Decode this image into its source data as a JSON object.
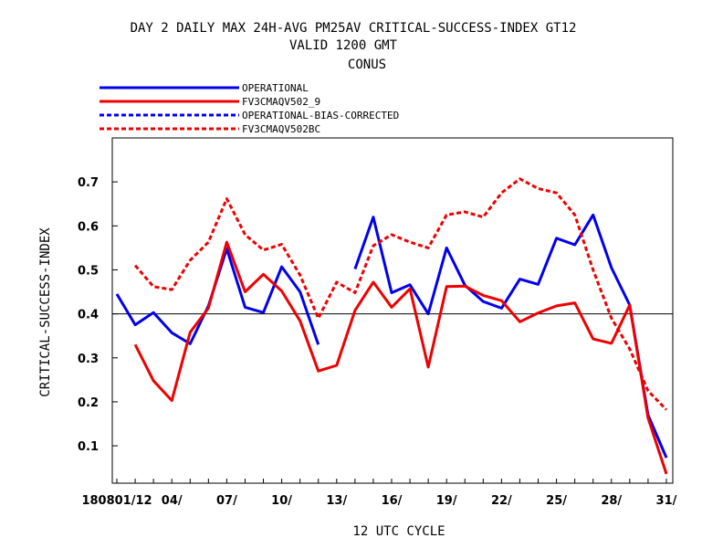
{
  "chart_data": {
    "type": "line",
    "title_lines": [
      "DAY 2 DAILY MAX   24H-AVG PM25AV CRITICAL-SUCCESS-INDEX GT12",
      "VALID 1200 GMT",
      "CONUS"
    ],
    "xlabel": "12 UTC CYCLE",
    "ylabel": "CRITICAL-SUCCESS-INDEX",
    "x_tick_labels": [
      {
        "day": 1,
        "label": "180801/12"
      },
      {
        "day": 4,
        "label": "04/"
      },
      {
        "day": 7,
        "label": "07/"
      },
      {
        "day": 10,
        "label": "10/"
      },
      {
        "day": 13,
        "label": "13/"
      },
      {
        "day": 16,
        "label": "16/"
      },
      {
        "day": 19,
        "label": "19/"
      },
      {
        "day": 22,
        "label": "22/"
      },
      {
        "day": 25,
        "label": "25/"
      },
      {
        "day": 28,
        "label": "28/"
      },
      {
        "day": 31,
        "label": "31/"
      }
    ],
    "y_ticks": [
      "0.1",
      "0.2",
      "0.3",
      "0.4",
      "0.5",
      "0.6",
      "0.7"
    ],
    "xlim": [
      0.75,
      31.35
    ],
    "ylim": [
      0.015,
      0.8
    ],
    "reference_line": 0.4,
    "legend_position": "top-left, above plot",
    "series": [
      {
        "name": "OPERATIONAL",
        "color": "#0000ee",
        "dash": "solid",
        "points": [
          [
            1,
            0.445
          ],
          [
            2,
            0.375
          ],
          [
            3,
            0.403
          ],
          [
            4,
            0.357
          ],
          [
            5,
            0.332
          ],
          [
            6,
            0.418
          ],
          [
            7,
            0.548
          ],
          [
            8,
            0.415
          ],
          [
            9,
            0.403
          ],
          [
            10,
            0.507
          ],
          [
            11,
            0.45
          ],
          [
            12,
            0.33
          ],
          [
            14,
            0.502
          ],
          [
            15,
            0.62
          ],
          [
            16,
            0.448
          ],
          [
            17,
            0.466
          ],
          [
            18,
            0.4
          ],
          [
            19,
            0.55
          ],
          [
            20,
            0.465
          ],
          [
            21,
            0.428
          ],
          [
            22,
            0.413
          ],
          [
            23,
            0.479
          ],
          [
            24,
            0.467
          ],
          [
            25,
            0.572
          ],
          [
            26,
            0.557
          ],
          [
            27,
            0.625
          ],
          [
            28,
            0.505
          ],
          [
            29,
            0.42
          ],
          [
            30,
            0.17
          ],
          [
            31,
            0.073
          ]
        ]
      },
      {
        "name": "FV3CMAQV502_9",
        "color": "#ee0000",
        "dash": "solid",
        "points": [
          [
            2,
            0.33
          ],
          [
            3,
            0.248
          ],
          [
            4,
            0.203
          ],
          [
            5,
            0.358
          ],
          [
            6,
            0.413
          ],
          [
            7,
            0.563
          ],
          [
            8,
            0.45
          ],
          [
            9,
            0.49
          ],
          [
            10,
            0.452
          ],
          [
            11,
            0.384
          ],
          [
            12,
            0.27
          ],
          [
            13,
            0.283
          ],
          [
            14,
            0.408
          ],
          [
            15,
            0.472
          ],
          [
            16,
            0.415
          ],
          [
            17,
            0.457
          ],
          [
            18,
            0.279
          ],
          [
            19,
            0.462
          ],
          [
            20,
            0.463
          ],
          [
            21,
            0.442
          ],
          [
            22,
            0.43
          ],
          [
            23,
            0.382
          ],
          [
            24,
            0.402
          ],
          [
            25,
            0.418
          ],
          [
            26,
            0.425
          ],
          [
            27,
            0.343
          ],
          [
            28,
            0.333
          ],
          [
            29,
            0.42
          ],
          [
            30,
            0.163
          ],
          [
            31,
            0.036
          ]
        ]
      },
      {
        "name": "OPERATIONAL-BIAS-CORRECTED",
        "color": "#0000ee",
        "dash": "dashed",
        "points": []
      },
      {
        "name": "FV3CMAQV502BC",
        "color": "#ee0000",
        "dash": "dashed",
        "points": [
          [
            2,
            0.51
          ],
          [
            3,
            0.462
          ],
          [
            4,
            0.455
          ],
          [
            5,
            0.522
          ],
          [
            6,
            0.563
          ],
          [
            7,
            0.662
          ],
          [
            8,
            0.58
          ],
          [
            9,
            0.545
          ],
          [
            10,
            0.558
          ],
          [
            11,
            0.488
          ],
          [
            12,
            0.39
          ],
          [
            13,
            0.472
          ],
          [
            14,
            0.448
          ],
          [
            15,
            0.555
          ],
          [
            16,
            0.58
          ],
          [
            17,
            0.563
          ],
          [
            18,
            0.55
          ],
          [
            19,
            0.625
          ],
          [
            20,
            0.632
          ],
          [
            21,
            0.62
          ],
          [
            22,
            0.675
          ],
          [
            23,
            0.707
          ],
          [
            24,
            0.685
          ],
          [
            25,
            0.675
          ],
          [
            26,
            0.625
          ],
          [
            27,
            0.5
          ],
          [
            28,
            0.39
          ],
          [
            29,
            0.32
          ],
          [
            30,
            0.225
          ],
          [
            31,
            0.182
          ]
        ]
      }
    ]
  }
}
